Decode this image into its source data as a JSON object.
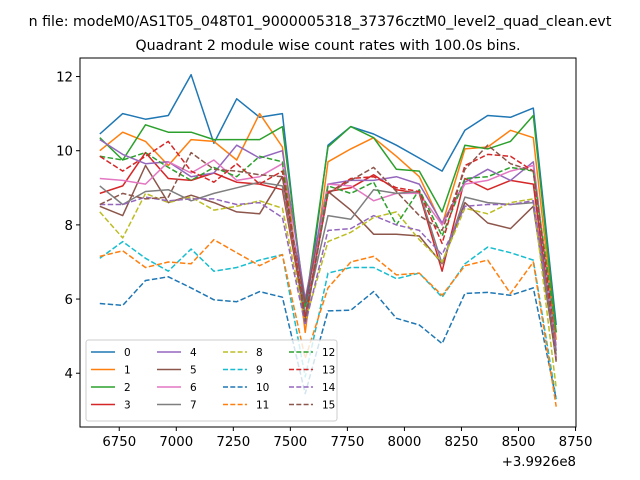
{
  "figure": {
    "suptitle": "n file: modeM0/AS1T05_048T01_9000005318_37376cztM0_level2_quad_clean.evt",
    "offset_label": "+3.9926e8"
  },
  "chart_data": {
    "type": "line",
    "title": "Quadrant 2 module wise count rates with 100.0s bins.",
    "xlabel": "",
    "ylabel": "",
    "x": [
      6665,
      6765,
      6865,
      6965,
      7065,
      7165,
      7265,
      7365,
      7465,
      7565,
      7665,
      7765,
      7865,
      7965,
      8065,
      8165,
      8265,
      8365,
      8465,
      8565,
      8665
    ],
    "xlim": [
      6578,
      8752
    ],
    "ylim": [
      2.55,
      12.5
    ],
    "x_ticks": [
      6750,
      7000,
      7250,
      7500,
      7750,
      8000,
      8250,
      8500,
      8750
    ],
    "y_ticks": [
      4,
      6,
      8,
      10,
      12
    ],
    "legend": {
      "placement": "lower-left",
      "ncol": 4
    },
    "series": [
      {
        "name": "0",
        "color": "#1f77b4",
        "dash": "solid",
        "values": [
          10.45,
          11.0,
          10.85,
          10.95,
          12.05,
          10.2,
          11.4,
          10.9,
          11.0,
          5.5,
          10.15,
          10.65,
          10.45,
          10.15,
          9.8,
          9.45,
          10.55,
          10.95,
          10.9,
          11.15,
          5.3
        ]
      },
      {
        "name": "1",
        "color": "#ff7f0e",
        "dash": "solid",
        "values": [
          10.0,
          10.5,
          10.25,
          9.6,
          10.3,
          10.25,
          9.75,
          11.0,
          10.1,
          5.1,
          9.7,
          10.05,
          10.35,
          9.85,
          9.3,
          8.0,
          10.05,
          10.1,
          10.55,
          10.35,
          4.9
        ]
      },
      {
        "name": "2",
        "color": "#2ca02c",
        "dash": "solid",
        "values": [
          10.35,
          9.75,
          10.7,
          10.5,
          10.5,
          10.3,
          10.3,
          10.3,
          10.65,
          5.8,
          10.1,
          10.65,
          10.35,
          9.5,
          9.45,
          8.35,
          10.15,
          10.05,
          10.25,
          10.95,
          5.1
        ]
      },
      {
        "name": "3",
        "color": "#d62728",
        "dash": "solid",
        "values": [
          8.85,
          9.05,
          9.95,
          9.25,
          9.2,
          9.4,
          9.15,
          9.1,
          8.95,
          5.5,
          8.9,
          9.0,
          9.35,
          8.95,
          8.85,
          6.75,
          9.25,
          8.95,
          9.2,
          9.1,
          4.4
        ]
      },
      {
        "name": "4",
        "color": "#9467bd",
        "dash": "solid",
        "values": [
          10.3,
          9.9,
          9.65,
          9.7,
          9.3,
          9.4,
          10.15,
          9.8,
          10.0,
          6.0,
          9.1,
          9.2,
          9.2,
          9.3,
          9.1,
          8.05,
          9.15,
          9.5,
          9.2,
          9.7,
          4.6
        ]
      },
      {
        "name": "5",
        "color": "#8c564b",
        "dash": "solid",
        "values": [
          8.5,
          8.25,
          9.6,
          8.6,
          8.8,
          8.6,
          8.35,
          8.3,
          9.3,
          5.9,
          8.9,
          8.4,
          7.75,
          7.75,
          7.7,
          6.95,
          8.6,
          8.05,
          7.9,
          8.5,
          4.35
        ]
      },
      {
        "name": "6",
        "color": "#e377c2",
        "dash": "solid",
        "values": [
          9.25,
          9.2,
          9.1,
          9.7,
          9.4,
          9.75,
          9.2,
          9.3,
          9.65,
          5.45,
          9.1,
          9.05,
          8.65,
          8.85,
          8.85,
          8.0,
          9.1,
          9.2,
          9.45,
          9.6,
          4.4
        ]
      },
      {
        "name": "7",
        "color": "#7f7f7f",
        "dash": "solid",
        "values": [
          9.05,
          8.55,
          8.9,
          8.95,
          8.65,
          8.85,
          9.0,
          9.15,
          9.05,
          5.6,
          8.25,
          8.15,
          8.95,
          8.85,
          8.9,
          6.95,
          8.75,
          8.6,
          8.55,
          8.6,
          4.5
        ]
      },
      {
        "name": "8",
        "color": "#bcbd22",
        "dash": "dashed",
        "values": [
          8.35,
          7.65,
          8.85,
          8.6,
          8.75,
          8.4,
          8.5,
          8.65,
          8.45,
          5.4,
          7.55,
          7.8,
          8.2,
          8.35,
          7.6,
          7.0,
          8.45,
          8.3,
          8.6,
          8.7,
          3.6
        ]
      },
      {
        "name": "9",
        "color": "#17becf",
        "dash": "dashed",
        "values": [
          7.1,
          7.55,
          7.1,
          6.75,
          7.35,
          6.75,
          6.85,
          7.05,
          7.2,
          3.9,
          6.7,
          6.85,
          6.85,
          6.55,
          6.7,
          6.05,
          6.95,
          7.4,
          7.25,
          7.05,
          3.3
        ]
      },
      {
        "name": "10",
        "color": "#1f77b4",
        "dash": "dashed",
        "values": [
          5.88,
          5.83,
          6.5,
          6.6,
          6.3,
          5.98,
          5.93,
          6.2,
          6.05,
          3.45,
          5.68,
          5.7,
          6.2,
          5.48,
          5.3,
          4.8,
          6.15,
          6.18,
          6.1,
          6.3,
          3.3
        ]
      },
      {
        "name": "11",
        "color": "#ff7f0e",
        "dash": "dashed",
        "values": [
          7.15,
          7.3,
          6.85,
          7.0,
          6.95,
          7.6,
          7.25,
          6.9,
          7.2,
          4.4,
          6.3,
          7.0,
          7.15,
          6.65,
          6.7,
          6.1,
          6.9,
          7.05,
          6.15,
          7.0,
          3.1
        ]
      },
      {
        "name": "12",
        "color": "#2ca02c",
        "dash": "dashed",
        "values": [
          9.85,
          9.75,
          9.95,
          9.55,
          9.2,
          9.55,
          9.3,
          9.85,
          9.7,
          5.3,
          9.05,
          8.85,
          9.15,
          8.0,
          8.95,
          7.7,
          9.25,
          9.3,
          9.55,
          9.45,
          5.1
        ]
      },
      {
        "name": "13",
        "color": "#d62728",
        "dash": "dashed",
        "values": [
          9.85,
          9.45,
          9.85,
          10.25,
          9.45,
          9.15,
          9.65,
          9.1,
          9.45,
          5.5,
          8.85,
          9.25,
          9.3,
          9.0,
          8.9,
          7.5,
          9.6,
          9.9,
          9.85,
          9.45,
          4.7
        ]
      },
      {
        "name": "14",
        "color": "#9467bd",
        "dash": "dashed",
        "values": [
          8.55,
          8.55,
          8.75,
          8.65,
          8.7,
          8.7,
          8.55,
          8.6,
          8.2,
          5.3,
          7.85,
          7.9,
          8.25,
          8.0,
          7.85,
          7.2,
          8.5,
          8.55,
          8.55,
          8.65,
          4.7
        ]
      },
      {
        "name": "15",
        "color": "#8c564b",
        "dash": "dashed",
        "values": [
          8.55,
          8.85,
          8.7,
          8.75,
          9.95,
          9.5,
          9.45,
          9.35,
          9.3,
          5.4,
          8.85,
          9.2,
          9.55,
          8.9,
          8.25,
          7.85,
          9.5,
          10.15,
          9.65,
          9.45,
          4.3
        ]
      }
    ]
  }
}
